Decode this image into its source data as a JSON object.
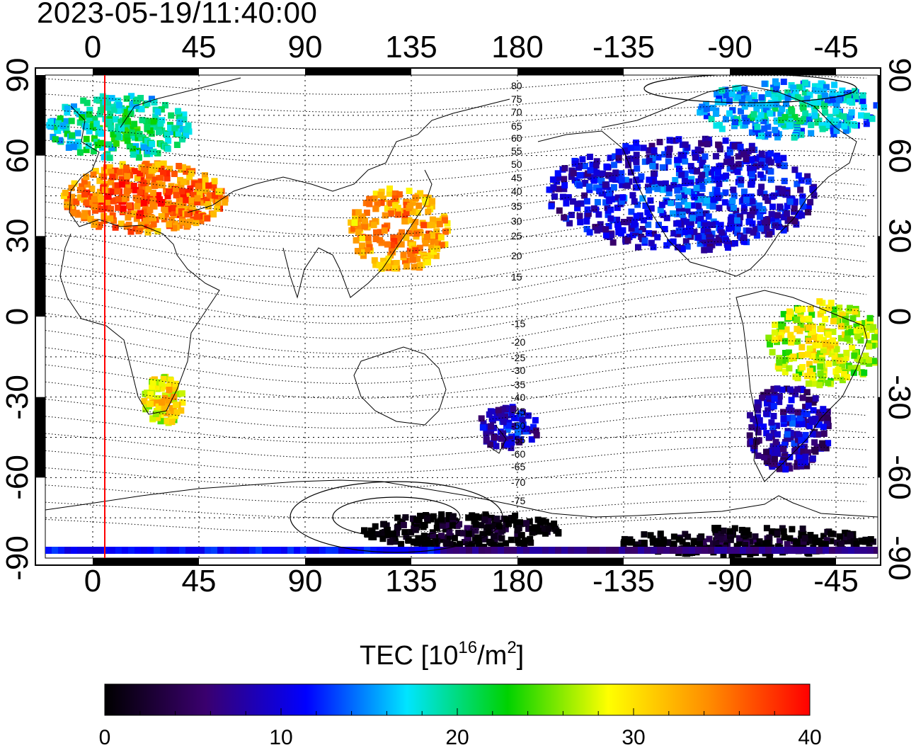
{
  "timestamp": "2023-05-19/11:40:00",
  "map": {
    "lon_ticks": [
      "0",
      "45",
      "90",
      "135",
      "180",
      "-135",
      "-90",
      "-45"
    ],
    "lat_ticks": [
      "90",
      "60",
      "30",
      "0",
      "-30",
      "-60",
      "-90"
    ],
    "subsolar_line_lon": 5,
    "contour_labels": [
      "80",
      "75",
      "70",
      "65",
      "60",
      "55",
      "50",
      "45",
      "40",
      "35",
      "30",
      "25",
      "20",
      "15",
      "-15",
      "-20",
      "-25",
      "-30",
      "-35",
      "-40",
      "-45",
      "-50",
      "-55",
      "-60",
      "-65",
      "-70",
      "-75"
    ]
  },
  "colorbar": {
    "title_prefix": "TEC  [10",
    "title_exp": "16",
    "title_suffix": "/m",
    "title_sq": "2",
    "title_end": "]",
    "min": 0,
    "max": 40,
    "ticks": [
      "0",
      "10",
      "20",
      "30",
      "40"
    ],
    "stops": [
      "#000000",
      "#3a006e",
      "#0000ff",
      "#00e5ff",
      "#00d200",
      "#ffff00",
      "#ff8c00",
      "#ff0000"
    ]
  },
  "regions": [
    {
      "name": "europe",
      "tec": 38
    },
    {
      "name": "arctic-europe",
      "tec": 22
    },
    {
      "name": "east-asia",
      "tec": 36
    },
    {
      "name": "north-america",
      "tec": 13
    },
    {
      "name": "canada-arctic",
      "tec": 19
    },
    {
      "name": "south-america-north",
      "tec": 30
    },
    {
      "name": "south-america-south",
      "tec": 11
    },
    {
      "name": "southern-africa",
      "tec": 32
    },
    {
      "name": "antarctica",
      "tec": 2
    },
    {
      "name": "new-zealand",
      "tec": 12
    }
  ]
}
